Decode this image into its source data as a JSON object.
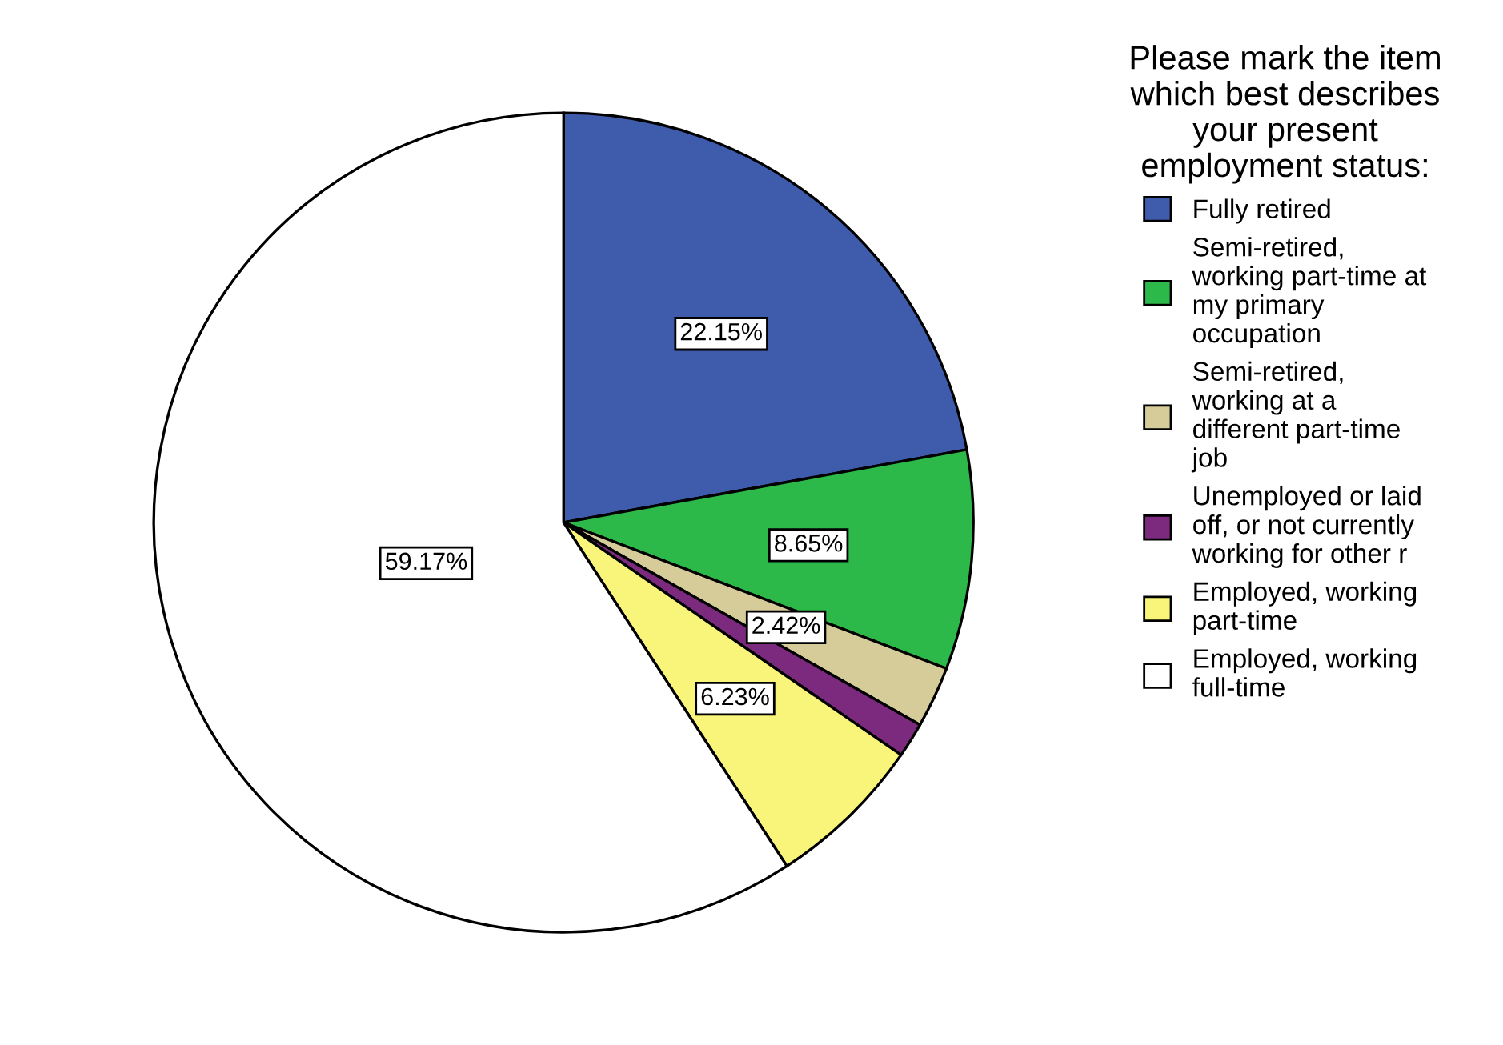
{
  "chart_data": {
    "type": "pie",
    "legend_title": "Please mark the item\nwhich best describes\nyour present\nemployment status:",
    "categories": [
      "Fully retired",
      "Semi-retired,\nworking part-time at\nmy primary\noccupation",
      "Semi-retired,\nworking at a\ndifferent part-time\njob",
      "Unemployed or laid\noff, or not currently\nworking for other r",
      "Employed, working\npart-time",
      "Employed, working\nfull-time"
    ],
    "values": [
      22.15,
      8.65,
      2.42,
      1.38,
      6.23,
      59.17
    ],
    "value_labels": [
      "22.15%",
      "8.65%",
      "2.42%",
      null,
      "6.23%",
      "59.17%"
    ],
    "colors": [
      "#3f5bab",
      "#2db84a",
      "#d6cc9a",
      "#7b2a7e",
      "#f9f57a",
      "#ffffff"
    ],
    "legend": "right"
  }
}
